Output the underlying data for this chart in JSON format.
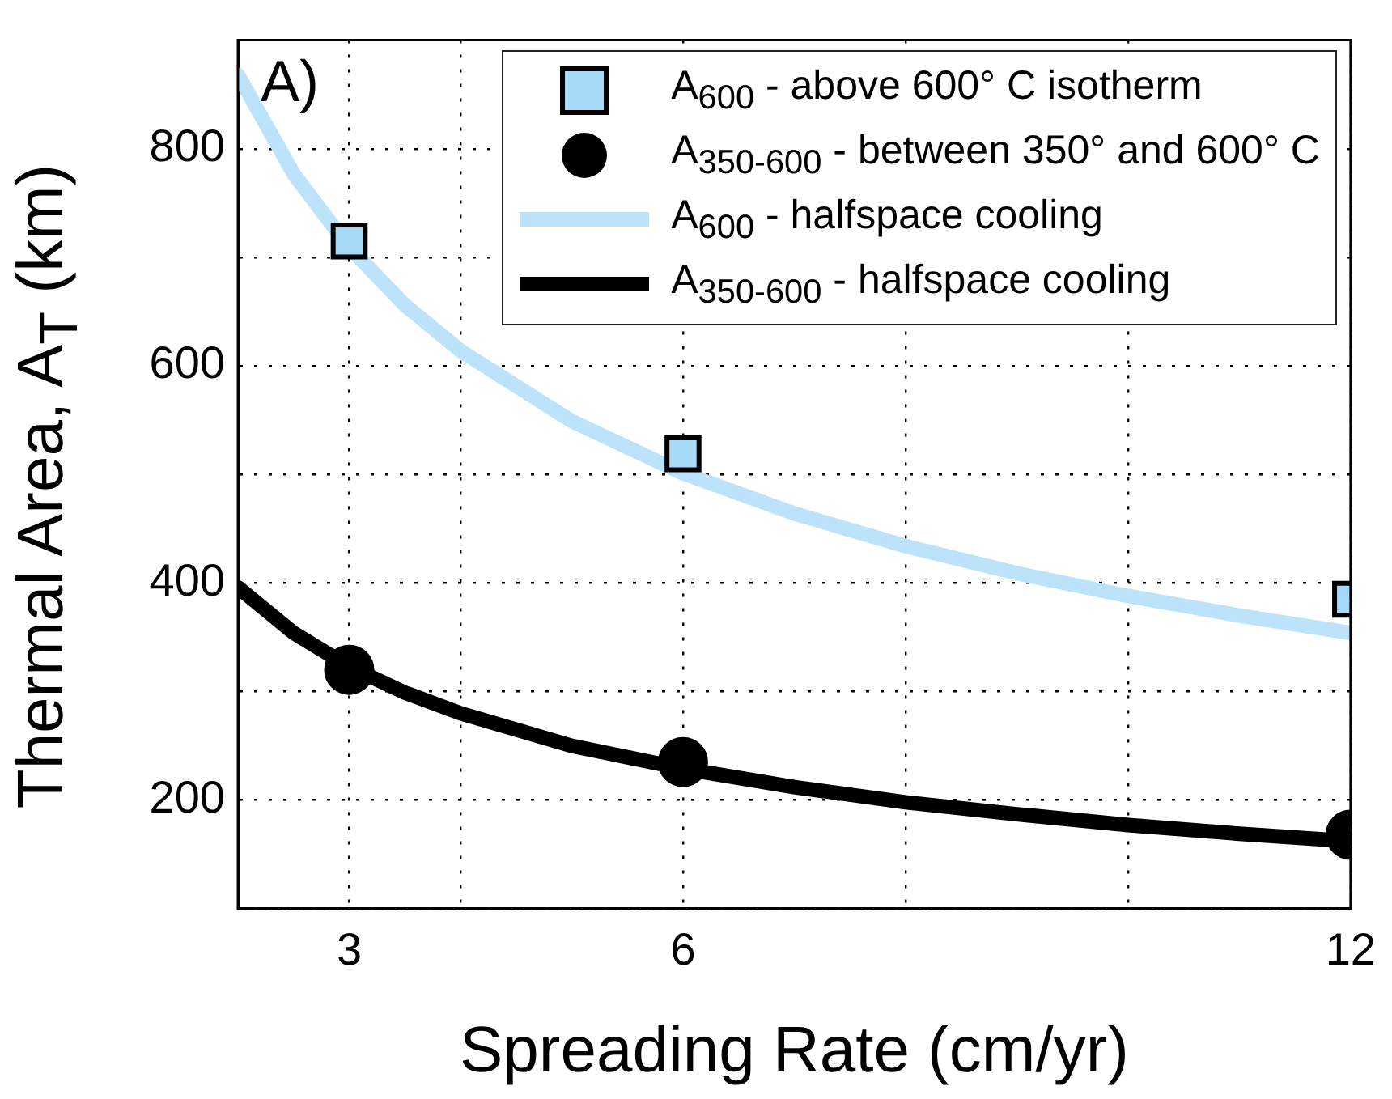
{
  "chart_data": {
    "type": "line",
    "xlabel": "Spreading Rate (cm/yr)",
    "ylabel": "Thermal Area, A$_{T}$ (km)",
    "annotations": [
      "A)"
    ],
    "xlim": [
      2,
      12
    ],
    "xticks": [
      {
        "value": 3,
        "label": "3"
      },
      {
        "value": 4,
        "label": null
      },
      6,
      {
        "value": 8,
        "label": null
      },
      {
        "value": 10,
        "label": null
      },
      12
    ],
    "ylim": [
      100,
      900
    ],
    "yticks": [
      {
        "value": 100,
        "label": null
      },
      200,
      {
        "value": 300,
        "label": null
      },
      400,
      {
        "value": 500,
        "label": null
      },
      600,
      {
        "value": 700,
        "label": null
      },
      800,
      {
        "value": 900,
        "label": null
      }
    ],
    "grid": true,
    "legend": "top right",
    "series": [
      {
        "name": "A$_{600}$ - above 600° C isotherm",
        "type": "scatter",
        "marker": "square",
        "color": "#a6d8f7",
        "x": [
          3,
          6,
          12
        ],
        "values": [
          715,
          519,
          385
        ]
      },
      {
        "name": "A$_{350-600}$ - between 350° and 600° C",
        "type": "scatter",
        "marker": "circle",
        "color": "#000000",
        "x": [
          3,
          6,
          12
        ],
        "values": [
          320,
          235,
          168
        ]
      },
      {
        "name": "A$_{600}$ - halfspace cooling",
        "type": "line",
        "marker": "none",
        "color": "#bde3fb",
        "x": [
          2,
          2.5,
          3,
          3.5,
          4,
          5,
          6,
          7,
          8,
          9,
          10,
          11,
          12
        ],
        "values": [
          868,
          777,
          709,
          656,
          614,
          549,
          501,
          464,
          434,
          409,
          388,
          370,
          354
        ]
      },
      {
        "name": "A$_{350-600}$ - halfspace cooling",
        "type": "line",
        "marker": "none",
        "color": "#000000",
        "x": [
          2,
          2.5,
          3,
          3.5,
          4,
          5,
          6,
          7,
          8,
          9,
          10,
          11,
          12
        ],
        "values": [
          396,
          354,
          323,
          299,
          280,
          250,
          229,
          212,
          198,
          187,
          177,
          169,
          162
        ]
      }
    ]
  }
}
